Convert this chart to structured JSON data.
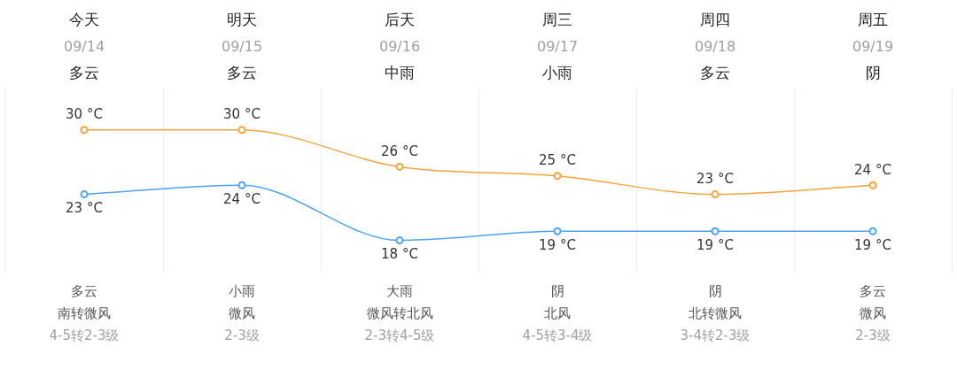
{
  "chart_data": {
    "type": "line",
    "categories": [
      "今天\n09/14\n多云",
      "明天\n09/15\n多云",
      "后天\n09/16\n中雨",
      "周三\n09/17\n小雨",
      "周四\n09/18\n多云",
      "周五\n09/19\n阴"
    ],
    "series": [
      {
        "color": "#f5a43a",
        "values": [
          30,
          30,
          26,
          25,
          23,
          24
        ],
        "value_labels": [
          "30 °C",
          "30 °C",
          "26 °C",
          "25 °C",
          "23 °C",
          "24 °C"
        ]
      },
      {
        "color": "#4da3f7",
        "values": [
          23,
          24,
          18,
          19,
          19,
          19
        ],
        "value_labels": [
          "23 °C",
          "24 °C",
          "18 °C",
          "19 °C",
          "19 °C",
          "19 °C"
        ]
      }
    ],
    "annotations": [
      "多云",
      "南转微风",
      "4-5转2-3级",
      "小雨",
      "微风",
      "2-3级",
      "大雨",
      "微风转北风",
      "2-3转4-5级",
      "阴",
      "北风",
      "4-5转3-4级",
      "阴",
      "北转微风",
      "3-4转2-3级",
      "多云",
      "微风",
      "2-3级"
    ],
    "marker": "circle",
    "line_style": "solid",
    "grid": "x",
    "legend": false,
    "tick_labels": false
  }
}
